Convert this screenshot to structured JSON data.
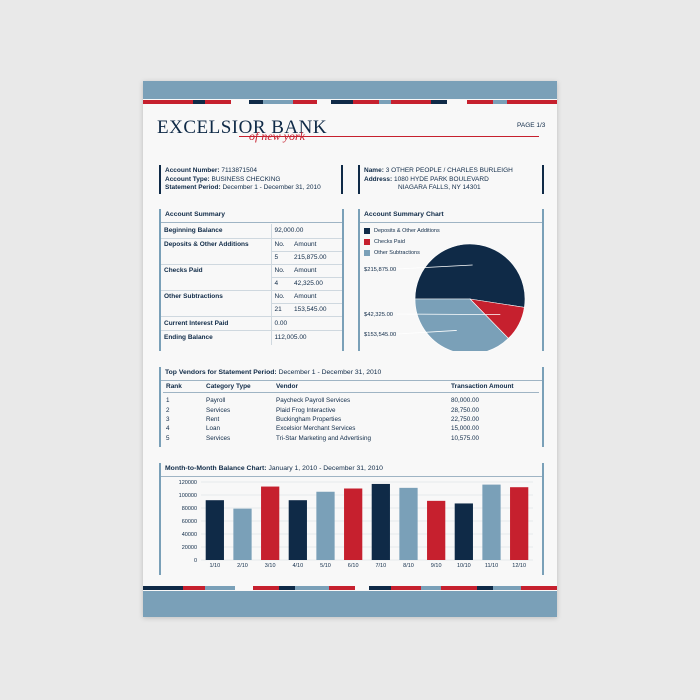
{
  "brand": {
    "name": "EXCELSIOR BANK",
    "tagline": "of new york",
    "page": "PAGE 1/3"
  },
  "colors": {
    "navy": "#0f2a47",
    "red": "#c6202e",
    "blue": "#7aa0b8"
  },
  "account": {
    "number_label": "Account Number:",
    "number": "7113871504",
    "type_label": "Account Type:",
    "type": "BUSINESS CHECKING",
    "period_label": "Statement Period:",
    "period": "December 1 - December 31, 2010"
  },
  "customer": {
    "name_label": "Name:",
    "name": "3 OTHER PEOPLE / CHARLES BURLEIGH",
    "address_label": "Address:",
    "address1": "1080 HYDE PARK BOULEVARD",
    "address2": "NIAGARA FALLS, NY 14301"
  },
  "summary": {
    "title": "Account Summary",
    "beginning_label": "Beginning Balance",
    "beginning": "92,000.00",
    "deposits_label": "Deposits & Other Additions",
    "checks_label": "Checks Paid",
    "other_label": "Other Subtractions",
    "no_header": "No.",
    "amount_header": "Amount",
    "deposits_no": "5",
    "deposits_amount": "215,875.00",
    "checks_no": "4",
    "checks_amount": "42,325.00",
    "other_no": "21",
    "other_amount": "153,545.00",
    "interest_label": "Current Interest Paid",
    "interest": "0.00",
    "ending_label": "Ending Balance",
    "ending": "112,005.00"
  },
  "summary_chart": {
    "title": "Account Summary Chart",
    "legend": [
      "Deposits & Other Additions",
      "Checks Paid",
      "Other Subtractions"
    ],
    "labels": [
      "$215,875.00",
      "$42,325.00",
      "$153,545.00"
    ]
  },
  "vendors": {
    "title": "Top Vendors for Statement Period:",
    "period": "December 1 - December 31, 2010",
    "headers": [
      "Rank",
      "Category Type",
      "Vendor",
      "Transaction Amount"
    ],
    "rows": [
      [
        "1",
        "Payroll",
        "Paycheck Payroll Services",
        "80,000.00"
      ],
      [
        "2",
        "Services",
        "Plaid Frog Interactive",
        "28,750.00"
      ],
      [
        "3",
        "Rent",
        "Buckingham Properties",
        "22,750.00"
      ],
      [
        "4",
        "Loan",
        "Excelsior Merchant Services",
        "15,000.00"
      ],
      [
        "5",
        "Services",
        "Tri-Star Marketing and Advertising",
        "10,575.00"
      ]
    ]
  },
  "balance_chart_meta": {
    "title": "Month-to-Month Balance Chart:",
    "period": "January 1, 2010 - December 31, 2010"
  },
  "chart_data": [
    {
      "type": "pie",
      "title": "Account Summary Chart",
      "categories": [
        "Deposits & Other Additions",
        "Checks Paid",
        "Other Subtractions"
      ],
      "values": [
        215875,
        42325,
        153545
      ],
      "value_labels": [
        "$215,875.00",
        "$42,325.00",
        "$153,545.00"
      ],
      "colors": [
        "#0f2a47",
        "#c6202e",
        "#7aa0b8"
      ],
      "legend": "top-left"
    },
    {
      "type": "bar",
      "title": "Month-to-Month Balance Chart:",
      "categories": [
        "1/10",
        "2/10",
        "3/10",
        "4/10",
        "5/10",
        "6/10",
        "7/10",
        "8/10",
        "9/10",
        "10/10",
        "11/10",
        "12/10"
      ],
      "values": [
        92000,
        79000,
        113000,
        92000,
        105000,
        110000,
        117000,
        111000,
        91000,
        87000,
        116000,
        112000
      ],
      "colors": [
        "#0f2a47",
        "#7aa0b8",
        "#c6202e",
        "#0f2a47",
        "#7aa0b8",
        "#c6202e",
        "#0f2a47",
        "#7aa0b8",
        "#c6202e",
        "#0f2a47",
        "#7aa0b8",
        "#c6202e"
      ],
      "ylim": [
        0,
        120000
      ],
      "yticks": [
        0,
        20000,
        40000,
        60000,
        80000,
        100000,
        120000
      ],
      "ytick_labels": [
        "0",
        "20000",
        "40000",
        "60000",
        "80000",
        "100000",
        "120000"
      ],
      "grid": true
    }
  ]
}
